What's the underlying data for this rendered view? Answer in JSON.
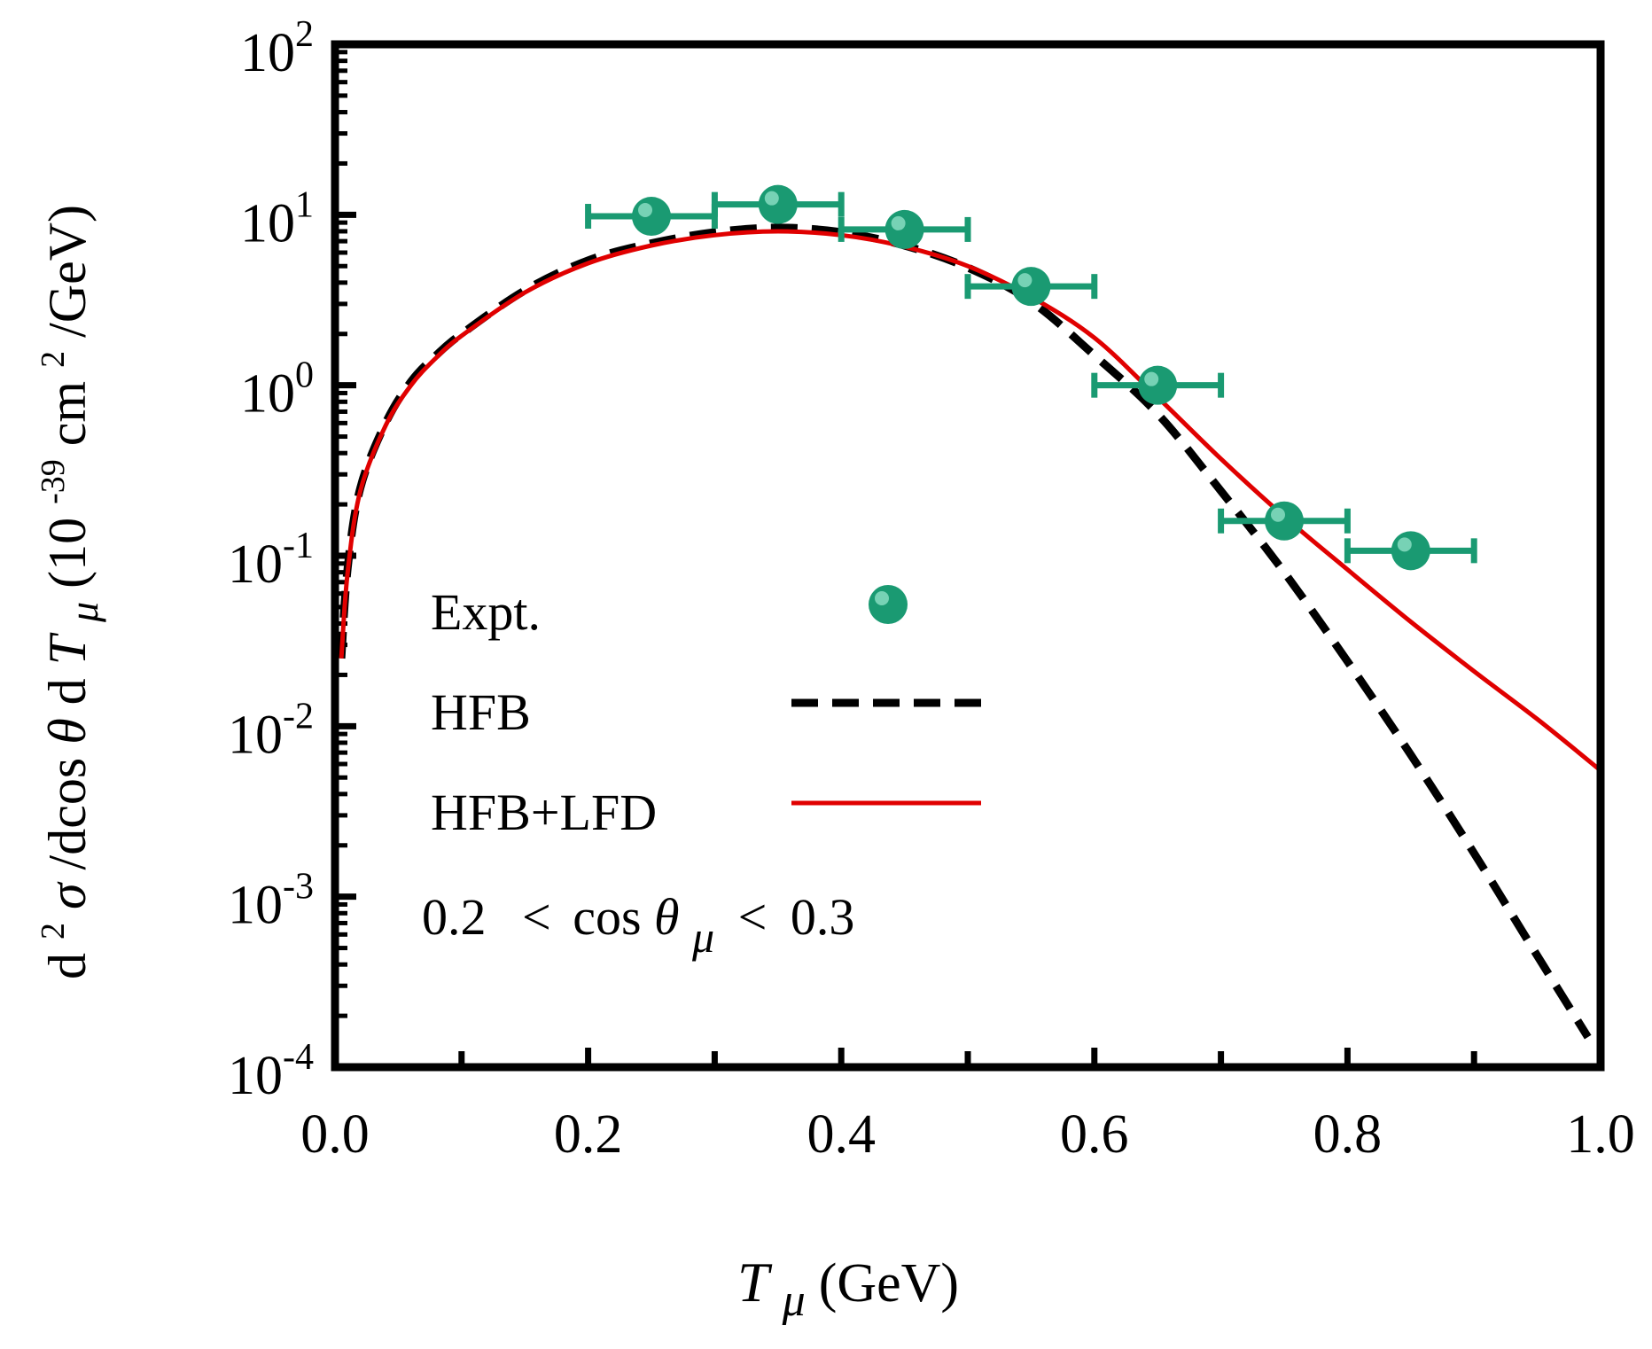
{
  "chart_data": {
    "type": "line",
    "xlabel_parts": {
      "symbol": "T",
      "subscript": "μ",
      "unit": " (GeV)"
    },
    "ylabel_parts": {
      "d": "d",
      "sup2": "2",
      "sigma": "σ",
      "mid": "/dcos",
      "theta": "θ",
      "d2": "d",
      "T": "T",
      "sub": "μ",
      "unitA": " (10",
      "supExp": "-39",
      "unitB": "cm",
      "supCm": "2",
      "unitC": "/GeV)"
    },
    "xlim": [
      0.0,
      1.0
    ],
    "ylim": [
      0.0001,
      100
    ],
    "yscale": "log",
    "x_ticks": [
      "0.0",
      "0.2",
      "0.4",
      "0.6",
      "0.8",
      "1.0"
    ],
    "y_ticks": [
      {
        "base": "10",
        "exp": "-4",
        "value": 0.0001
      },
      {
        "base": "10",
        "exp": "-3",
        "value": 0.001
      },
      {
        "base": "10",
        "exp": "-2",
        "value": 0.01
      },
      {
        "base": "10",
        "exp": "-1",
        "value": 0.1
      },
      {
        "base": "10",
        "exp": "0",
        "value": 1
      },
      {
        "base": "10",
        "exp": "1",
        "value": 10
      },
      {
        "base": "10",
        "exp": "2",
        "value": 100
      }
    ],
    "legend": {
      "position": "lower-left",
      "entries": [
        {
          "label": "Expt.",
          "style": "marker"
        },
        {
          "label": "HFB",
          "style": "dashed"
        },
        {
          "label": "HFB+LFD",
          "style": "solid"
        }
      ]
    },
    "annotation": {
      "left": "0.2",
      "lt1": "<",
      "cos": "cos",
      "theta": "θ",
      "sub": "μ",
      "lt2": "<",
      "right": "0.3"
    },
    "series": [
      {
        "name": "Expt.",
        "kind": "scatter",
        "color": "#1a9a72",
        "points": [
          {
            "x": 0.25,
            "y": 9.8,
            "xerr": 0.05
          },
          {
            "x": 0.35,
            "y": 11.5,
            "xerr": 0.05
          },
          {
            "x": 0.45,
            "y": 8.2,
            "xerr": 0.05
          },
          {
            "x": 0.55,
            "y": 3.8,
            "xerr": 0.05
          },
          {
            "x": 0.65,
            "y": 1.0,
            "xerr": 0.05
          },
          {
            "x": 0.75,
            "y": 0.16,
            "xerr": 0.05
          },
          {
            "x": 0.85,
            "y": 0.107,
            "xerr": 0.05
          }
        ]
      },
      {
        "name": "HFB",
        "kind": "line",
        "dash": "dashed",
        "color": "#000000",
        "x": [
          0.005,
          0.01,
          0.02,
          0.04,
          0.06,
          0.08,
          0.1,
          0.15,
          0.2,
          0.25,
          0.3,
          0.35,
          0.4,
          0.45,
          0.5,
          0.55,
          0.6,
          0.65,
          0.7,
          0.75,
          0.8,
          0.85,
          0.9,
          0.95,
          0.99
        ],
        "y": [
          0.025,
          0.085,
          0.25,
          0.6,
          1.05,
          1.5,
          2.0,
          3.6,
          5.4,
          6.8,
          7.9,
          8.4,
          7.9,
          6.6,
          4.9,
          3.1,
          1.5,
          0.68,
          0.24,
          0.08,
          0.024,
          0.0068,
          0.0018,
          0.00045,
          0.00015
        ]
      },
      {
        "name": "HFB+LFD",
        "kind": "line",
        "dash": "solid",
        "color": "#e00000",
        "x": [
          0.005,
          0.01,
          0.02,
          0.04,
          0.06,
          0.08,
          0.1,
          0.15,
          0.2,
          0.25,
          0.3,
          0.35,
          0.4,
          0.45,
          0.5,
          0.55,
          0.6,
          0.65,
          0.7,
          0.75,
          0.8,
          0.85,
          0.9,
          0.95,
          1.0
        ],
        "y": [
          0.025,
          0.08,
          0.24,
          0.58,
          1.0,
          1.45,
          1.95,
          3.5,
          5.2,
          6.6,
          7.6,
          8.0,
          7.6,
          6.5,
          5.0,
          3.3,
          1.9,
          0.85,
          0.37,
          0.17,
          0.083,
          0.041,
          0.021,
          0.011,
          0.0055
        ]
      }
    ]
  }
}
